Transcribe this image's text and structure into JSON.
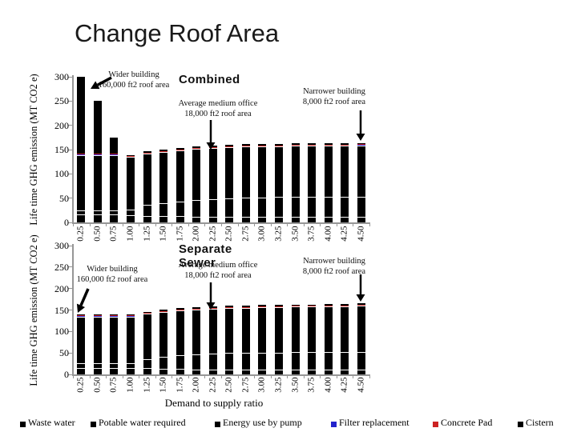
{
  "slide_title": "Change Roof Area",
  "colors": {
    "bar_black": "#000000",
    "filter_blue": "#2222CC",
    "concrete_red": "#CC2222",
    "axis_gray": "#969696",
    "background": "#FFFFFF"
  },
  "legend": {
    "items": [
      {
        "label": "Waste water",
        "color": "#000000"
      },
      {
        "label": "Potable water required",
        "color": "#000000"
      },
      {
        "label": "Energy use by pump",
        "color": "#000000"
      },
      {
        "label": "Filter replacement",
        "color": "#2222CC"
      },
      {
        "label": "Concrete Pad",
        "color": "#CC2222"
      },
      {
        "label": "Cistern",
        "color": "#000000"
      }
    ]
  },
  "chart_data": [
    {
      "type": "bar",
      "stacked": true,
      "title": "Combined",
      "ylabel": "Life time GHG emission (MT CO2 e)",
      "xlabel": "",
      "ylim": [
        0,
        300
      ],
      "yticks": [
        0,
        50,
        100,
        150,
        200,
        250,
        300
      ],
      "grid": false,
      "categories": [
        "0.25",
        "0.50",
        "0.75",
        "1.00",
        "1.25",
        "1.50",
        "1.75",
        "2.00",
        "2.25",
        "2.50",
        "2.75",
        "3.00",
        "3.25",
        "3.50",
        "3.75",
        "4.00",
        "4.25",
        "4.50"
      ],
      "totals": [
        300,
        251,
        175,
        139,
        146,
        150,
        153,
        156,
        158,
        160,
        161,
        162,
        162,
        163,
        163,
        163,
        163,
        164
      ],
      "series": [
        {
          "name": "Waste water",
          "color": "#000000",
          "values": [
            17,
            17,
            17,
            15,
            14,
            13,
            13,
            12,
            12,
            12,
            12,
            12,
            12,
            12,
            12,
            12,
            12,
            12
          ]
        },
        {
          "name": "Potable water required",
          "color": "#000000",
          "values": [
            8,
            8,
            8,
            11,
            22,
            27,
            30,
            34,
            36,
            38,
            39,
            39,
            40,
            40,
            40,
            40,
            40,
            41
          ]
        },
        {
          "name": "Energy use by pump",
          "color": "#000000",
          "values": [
            114,
            114,
            114,
            109,
            105,
            105,
            105,
            105,
            105,
            105,
            105,
            106,
            105,
            106,
            106,
            106,
            106,
            106
          ]
        },
        {
          "name": "Filter replacement",
          "color": "#2222CC",
          "values": [
            1,
            1,
            1,
            1,
            1,
            1,
            1,
            1,
            1,
            1,
            1,
            1,
            1,
            1,
            1,
            1,
            1,
            1
          ]
        },
        {
          "name": "Concrete Pad",
          "color": "#CC2222",
          "values": [
            1,
            1,
            1,
            1,
            1,
            1,
            1,
            1,
            1,
            1,
            1,
            1,
            1,
            1,
            1,
            1,
            1,
            1
          ]
        },
        {
          "name": "Cistern",
          "color": "#000000",
          "values": [
            159,
            110,
            34,
            2,
            3,
            3,
            3,
            3,
            3,
            3,
            3,
            3,
            3,
            3,
            3,
            3,
            3,
            3
          ]
        }
      ],
      "annotations": [
        {
          "id": "wider",
          "lines": [
            "Wider building",
            "160,000 ft2 roof area"
          ]
        },
        {
          "id": "average",
          "lines": [
            "Average medium office",
            "18,000 ft2 roof area"
          ]
        },
        {
          "id": "narrower",
          "lines": [
            "Narrower building",
            "8,000 ft2 roof area"
          ]
        }
      ]
    },
    {
      "type": "bar",
      "stacked": true,
      "title": "Separate Sewer",
      "ylabel": "Life time GHG emission (MT CO2 e)",
      "xlabel": "Demand to supply ratio",
      "ylim": [
        0,
        300
      ],
      "yticks": [
        0,
        50,
        100,
        150,
        200,
        250,
        300
      ],
      "grid": false,
      "categories": [
        "0.25",
        "0.50",
        "0.75",
        "1.00",
        "1.25",
        "1.50",
        "1.75",
        "2.00",
        "2.25",
        "2.50",
        "2.75",
        "3.00",
        "3.25",
        "3.50",
        "3.75",
        "4.00",
        "4.25",
        "4.50"
      ],
      "totals": [
        139,
        139,
        139,
        139,
        146,
        151,
        154,
        156,
        158,
        160,
        160,
        162,
        162,
        163,
        163,
        164,
        164,
        165
      ],
      "series": [
        {
          "name": "Waste water",
          "color": "#000000",
          "values": [
            15,
            15,
            15,
            15,
            14,
            13,
            13,
            12,
            12,
            12,
            12,
            12,
            12,
            12,
            12,
            12,
            12,
            12
          ]
        },
        {
          "name": "Potable water required",
          "color": "#000000",
          "values": [
            11,
            11,
            11,
            11,
            22,
            28,
            31,
            34,
            36,
            38,
            38,
            39,
            39,
            40,
            40,
            40,
            40,
            41
          ]
        },
        {
          "name": "Energy use by pump",
          "color": "#000000",
          "values": [
            109,
            109,
            109,
            109,
            105,
            105,
            105,
            105,
            105,
            105,
            105,
            106,
            106,
            106,
            106,
            107,
            107,
            107
          ]
        },
        {
          "name": "Filter replacement",
          "color": "#2222CC",
          "values": [
            1,
            1,
            1,
            1,
            1,
            1,
            1,
            1,
            1,
            1,
            1,
            1,
            1,
            1,
            1,
            1,
            1,
            1
          ]
        },
        {
          "name": "Concrete Pad",
          "color": "#CC2222",
          "values": [
            1,
            1,
            1,
            1,
            1,
            1,
            1,
            1,
            1,
            1,
            1,
            1,
            1,
            1,
            1,
            1,
            1,
            1
          ]
        },
        {
          "name": "Cistern",
          "color": "#000000",
          "values": [
            2,
            2,
            2,
            2,
            3,
            3,
            3,
            3,
            3,
            3,
            3,
            3,
            3,
            3,
            3,
            3,
            3,
            3
          ]
        }
      ],
      "annotations": [
        {
          "id": "wider",
          "lines": [
            "Wider building",
            "160,000 ft2 roof area"
          ]
        },
        {
          "id": "average",
          "lines": [
            "Average medium office",
            "18,000 ft2 roof area"
          ]
        },
        {
          "id": "narrower",
          "lines": [
            "Narrower building",
            "8,000 ft2 roof area"
          ]
        }
      ]
    }
  ]
}
